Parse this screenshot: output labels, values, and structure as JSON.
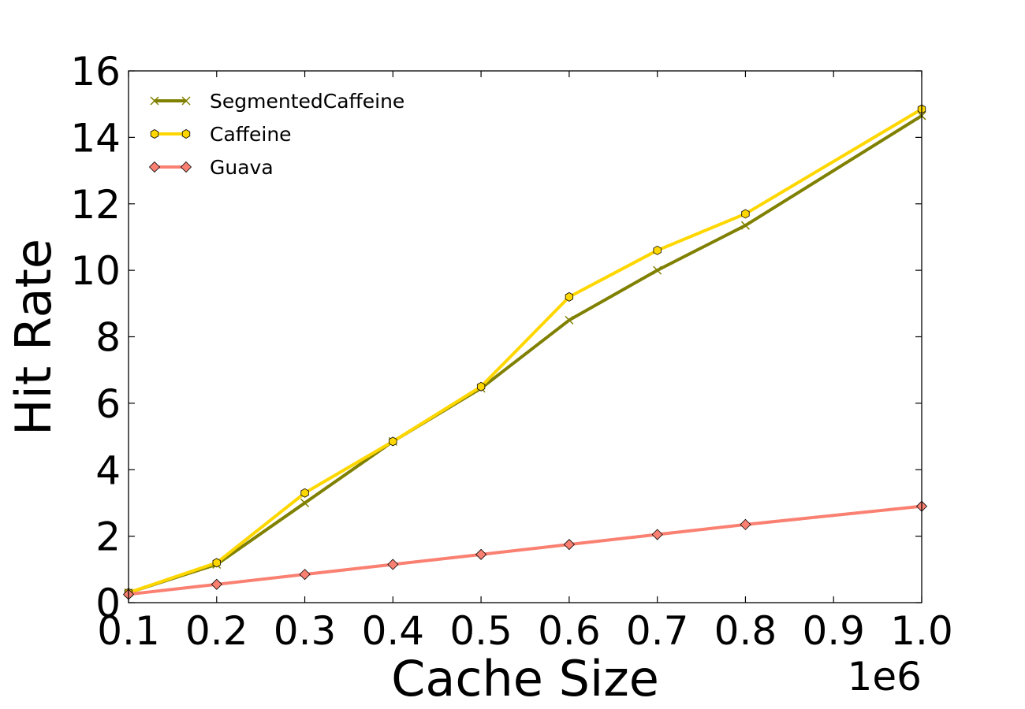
{
  "chart_data": {
    "type": "line",
    "xlabel": "Cache Size",
    "ylabel": "Hit Rate",
    "x_offset_label": "1e6",
    "xlim": [
      0.1,
      1.0
    ],
    "ylim": [
      0,
      16
    ],
    "xticks": [
      0.1,
      0.2,
      0.3,
      0.4,
      0.5,
      0.6,
      0.7,
      0.8,
      0.9,
      1.0
    ],
    "xtick_labels": [
      "0.1",
      "0.2",
      "0.3",
      "0.4",
      "0.5",
      "0.6",
      "0.7",
      "0.8",
      "0.9",
      "1.0"
    ],
    "yticks": [
      0,
      2,
      4,
      6,
      8,
      10,
      12,
      14,
      16
    ],
    "ytick_labels": [
      "0",
      "2",
      "4",
      "6",
      "8",
      "10",
      "12",
      "14",
      "16"
    ],
    "grid": false,
    "legend_position": "top-left",
    "x": [
      0.1,
      0.2,
      0.3,
      0.4,
      0.5,
      0.6,
      0.7,
      0.8,
      1.0
    ],
    "series": [
      {
        "name": "SegmentedCaffeine",
        "color": "#808000",
        "marker": "x",
        "values": [
          0.3,
          1.15,
          3.0,
          4.85,
          6.45,
          8.5,
          10.0,
          11.35,
          14.65
        ]
      },
      {
        "name": "Caffeine",
        "color": "#FFD700",
        "marker": "hexagon",
        "values": [
          0.3,
          1.2,
          3.3,
          4.85,
          6.5,
          9.2,
          10.6,
          11.7,
          14.85
        ]
      },
      {
        "name": "Guava",
        "color": "#FA8072",
        "marker": "diamond",
        "values": [
          0.25,
          0.55,
          0.85,
          1.15,
          1.45,
          1.75,
          2.05,
          2.35,
          2.9
        ]
      }
    ]
  }
}
